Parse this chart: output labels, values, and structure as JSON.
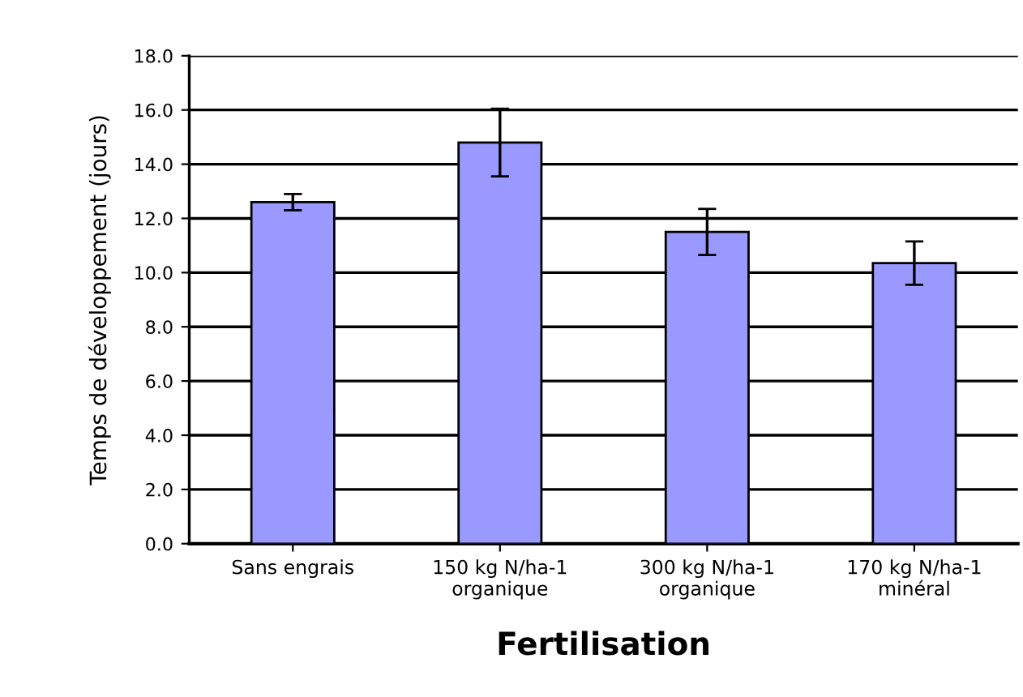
{
  "chart_data": {
    "type": "bar",
    "xlabel": "Fertilisation",
    "ylabel": "Temps de développement (jours)",
    "categories": [
      "Sans engrais",
      "150 kg N/ha-1\norganique",
      "300 kg N/ha-1\norganique",
      "170 kg N/ha-1\nminéral"
    ],
    "values": [
      12.6,
      14.8,
      11.5,
      10.35
    ],
    "errors": [
      0.3,
      1.25,
      0.85,
      0.8
    ],
    "color": "#9999ff",
    "ylim": [
      0,
      18
    ],
    "yticks": [
      {
        "value": 0,
        "label": "0.0"
      },
      {
        "value": 2,
        "label": "2.0"
      },
      {
        "value": 4,
        "label": "4.0"
      },
      {
        "value": 6,
        "label": "6.0"
      },
      {
        "value": 8,
        "label": "8.0"
      },
      {
        "value": 10,
        "label": "10.0"
      },
      {
        "value": 12,
        "label": "12.0"
      },
      {
        "value": 14,
        "label": "14.0"
      },
      {
        "value": 16,
        "label": "16.0"
      },
      {
        "value": 18,
        "label": "18.0"
      }
    ],
    "grid": "y"
  }
}
